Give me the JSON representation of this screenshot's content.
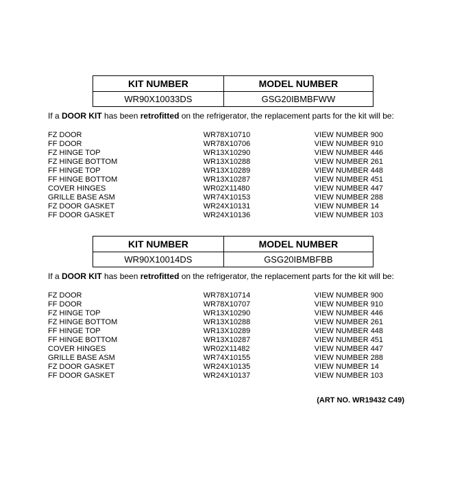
{
  "kit1": {
    "headers": {
      "kit": "KIT NUMBER",
      "model": "MODEL NUMBER"
    },
    "values": {
      "kit": "WR90X10033DS",
      "model": "GSG20IBMBFWW"
    },
    "note_prefix": "If a ",
    "note_bold1": "DOOR KIT",
    "note_mid": " has been ",
    "note_bold2": "retrofitted",
    "note_suffix": " on the refrigerator, the replacement parts for the kit will be:",
    "parts": [
      {
        "name": "FZ DOOR",
        "pn": "WR78X10710",
        "view": "VIEW NUMBER 900"
      },
      {
        "name": "FF DOOR",
        "pn": "WR78X10706",
        "view": "VIEW NUMBER 910"
      },
      {
        "name": "FZ HINGE TOP",
        "pn": "WR13X10290",
        "view": "VIEW NUMBER 446"
      },
      {
        "name": "FZ HINGE BOTTOM",
        "pn": "WR13X10288",
        "view": "VIEW NUMBER 261"
      },
      {
        "name": "FF HINGE TOP",
        "pn": "WR13X10289",
        "view": "VIEW NUMBER 448"
      },
      {
        "name": "FF HINGE BOTTOM",
        "pn": "WR13X10287",
        "view": "VIEW NUMBER 451"
      },
      {
        "name": "COVER HINGES",
        "pn": "WR02X11480",
        "view": "VIEW NUMBER 447"
      },
      {
        "name": "GRILLE BASE ASM",
        "pn": "WR74X10153",
        "view": "VIEW NUMBER 288"
      },
      {
        "name": "FZ DOOR GASKET",
        "pn": "WR24X10131",
        "view": "VIEW NUMBER 14"
      },
      {
        "name": "FF DOOR GASKET",
        "pn": "WR24X10136",
        "view": "VIEW NUMBER 103"
      }
    ]
  },
  "kit2": {
    "headers": {
      "kit": "KIT NUMBER",
      "model": "MODEL NUMBER"
    },
    "values": {
      "kit": "WR90X10014DS",
      "model": "GSG20IBMBFBB"
    },
    "note_prefix": "If a ",
    "note_bold1": "DOOR KIT",
    "note_mid": " has been ",
    "note_bold2": "retrofitted",
    "note_suffix": " on the refrigerator, the replacement parts for the kit will be:",
    "parts": [
      {
        "name": "FZ DOOR",
        "pn": "WR78X10714",
        "view": "VIEW NUMBER 900"
      },
      {
        "name": "FF DOOR",
        "pn": "WR78X10707",
        "view": "VIEW NUMBER 910"
      },
      {
        "name": "FZ HINGE TOP",
        "pn": "WR13X10290",
        "view": "VIEW NUMBER 446"
      },
      {
        "name": "FZ HINGE BOTTOM",
        "pn": "WR13X10288",
        "view": "VIEW NUMBER 261"
      },
      {
        "name": "FF HINGE TOP",
        "pn": "WR13X10289",
        "view": "VIEW NUMBER 448"
      },
      {
        "name": "FF HINGE BOTTOM",
        "pn": "WR13X10287",
        "view": "VIEW NUMBER 451"
      },
      {
        "name": "COVER HINGES",
        "pn": "WR02X11482",
        "view": "VIEW NUMBER 447"
      },
      {
        "name": "GRILLE BASE ASM",
        "pn": "WR74X10155",
        "view": "VIEW NUMBER 288"
      },
      {
        "name": "FZ DOOR GASKET",
        "pn": "WR24X10135",
        "view": "VIEW NUMBER 14"
      },
      {
        "name": "FF DOOR GASKET",
        "pn": "WR24X10137",
        "view": "VIEW NUMBER 103"
      }
    ]
  },
  "art_no": "(ART NO. WR19432 C49)"
}
